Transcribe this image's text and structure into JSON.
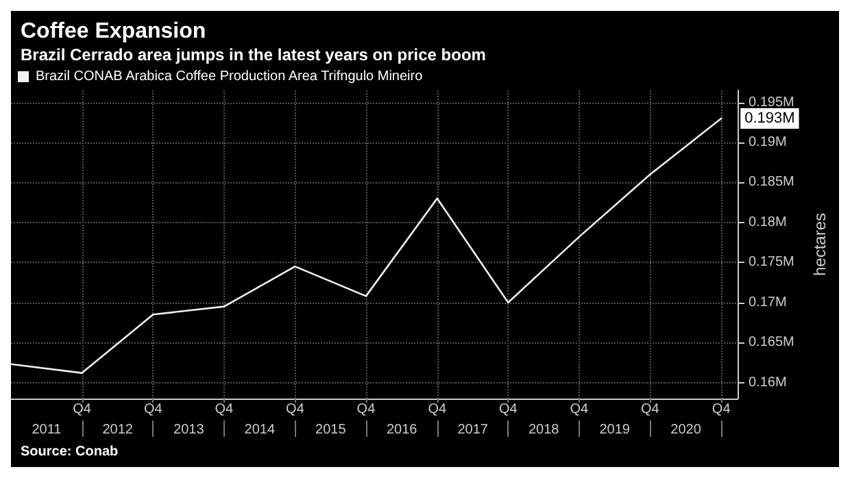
{
  "chart_data": {
    "type": "line",
    "title": "Coffee Expansion",
    "subtitle": "Brazil Cerrado area jumps in the latest years on price boom",
    "ylabel": "hectares",
    "x": [
      "2010-12-31",
      "2011-12-31",
      "2012-12-31",
      "2013-12-31",
      "2014-12-31",
      "2015-12-31",
      "2016-12-31",
      "2017-12-31",
      "2018-12-31",
      "2019-12-31",
      "2020-12-31"
    ],
    "series": [
      {
        "name": "Brazil CONAB Arabica Coffee Production Area Trifngulo Mineiro",
        "color": "#f0f0f0",
        "values": [
          0.1623,
          0.1612,
          0.1685,
          0.1695,
          0.1745,
          0.1708,
          0.183,
          0.17,
          0.1782,
          0.186,
          0.193
        ],
        "value_labels": [
          null,
          null,
          null,
          null,
          null,
          null,
          null,
          null,
          null,
          null,
          "0.193M"
        ]
      }
    ],
    "xlim": [
      "2010-12-31",
      "2021-03-25"
    ],
    "xticks": [
      {
        "value": "2011-12-31",
        "label": "Q4"
      },
      {
        "value": "2012-12-31",
        "label": "Q4"
      },
      {
        "value": "2013-12-31",
        "label": "Q4"
      },
      {
        "value": "2014-12-31",
        "label": "Q4"
      },
      {
        "value": "2015-12-31",
        "label": "Q4"
      },
      {
        "value": "2016-12-31",
        "label": "Q4"
      },
      {
        "value": "2017-12-31",
        "label": "Q4"
      },
      {
        "value": "2018-12-31",
        "label": "Q4"
      },
      {
        "value": "2019-12-31",
        "label": "Q4"
      },
      {
        "value": "2020-12-31",
        "label": "Q4"
      }
    ],
    "x2lim": [
      "2010-12-31",
      "2021-03-25"
    ],
    "x2ticks": [
      {
        "value": "2011-07-02",
        "label": "2011"
      },
      {
        "value": "2012-07-02",
        "label": "2012"
      },
      {
        "value": "2013-07-02",
        "label": "2013"
      },
      {
        "value": "2014-07-02",
        "label": "2014"
      },
      {
        "value": "2015-07-02",
        "label": "2015"
      },
      {
        "value": "2016-07-02",
        "label": "2016"
      },
      {
        "value": "2017-07-02",
        "label": "2017"
      },
      {
        "value": "2018-07-02",
        "label": "2018"
      },
      {
        "value": "2019-07-02",
        "label": "2019"
      },
      {
        "value": "2020-07-02",
        "label": "2020"
      }
    ],
    "ylim": [
      0.158,
      0.1965
    ],
    "yticks": [
      {
        "value": 0.16,
        "label": "0.16M"
      },
      {
        "value": 0.165,
        "label": "0.165M"
      },
      {
        "value": 0.17,
        "label": "0.17M"
      },
      {
        "value": 0.175,
        "label": "0.175M"
      },
      {
        "value": 0.18,
        "label": "0.18M"
      },
      {
        "value": 0.185,
        "label": "0.185M"
      },
      {
        "value": 0.19,
        "label": "0.19M"
      },
      {
        "value": 0.195,
        "label": "0.195M"
      }
    ],
    "grid": true,
    "legend": "top left",
    "marker": "none",
    "line_style": "solid",
    "annotations": [
      "Source: Conab"
    ]
  }
}
